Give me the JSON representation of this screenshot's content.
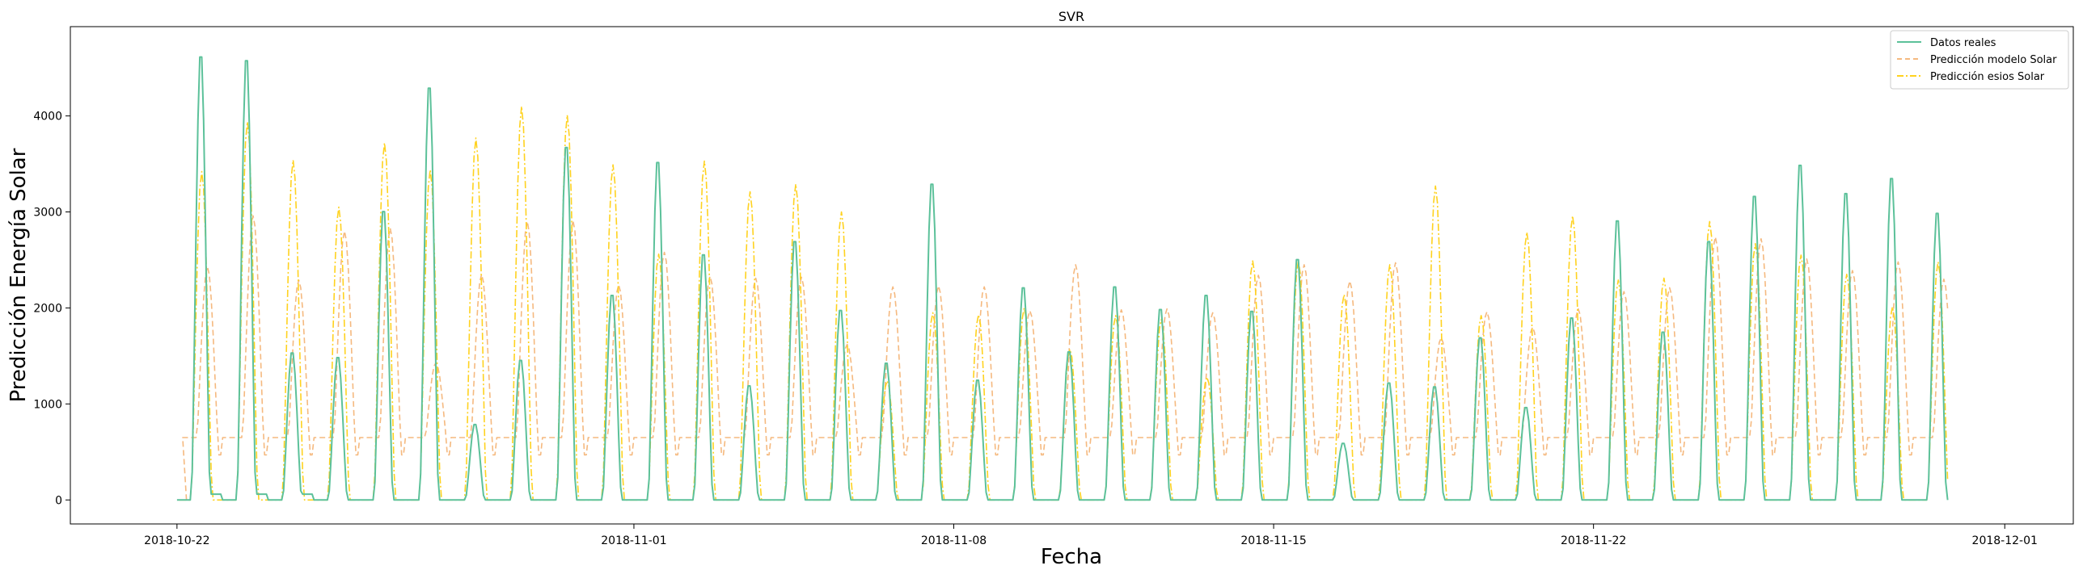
{
  "chart_data": {
    "type": "line",
    "title": "SVR",
    "xlabel": "Fecha",
    "ylabel": "Predicción Energía Solar",
    "x_range": [
      "2018-10-19T16:00",
      "2018-12-02T12:00"
    ],
    "ylim": [
      -250,
      4930
    ],
    "x_ticks": [
      "2018-10-22",
      "2018-11-01",
      "2018-11-08",
      "2018-11-15",
      "2018-11-22",
      "2018-12-01"
    ],
    "y_ticks": [
      0,
      1000,
      2000,
      3000,
      4000
    ],
    "grid": false,
    "legend_position": "top-right",
    "start_date": "2018-10-22",
    "num_days": 39,
    "series": [
      {
        "name": "Datos reales",
        "color": "#5cc19a",
        "style": "solid",
        "daily_peaks": [
          4700,
          4660,
          1560,
          1510,
          3060,
          4370,
          800,
          1480,
          3740,
          2170,
          3580,
          2600,
          1210,
          2740,
          2010,
          1450,
          3350,
          1270,
          2250,
          1570,
          2260,
          2020,
          2170,
          2000,
          2550,
          600,
          1240,
          1200,
          1720,
          980,
          1930,
          2960,
          1780,
          2740,
          3220,
          3550,
          3250,
          3410,
          3040
        ]
      },
      {
        "name": "Predicción modelo Solar",
        "color": "#f5b97f",
        "style": "dashed",
        "baseline": 650,
        "daily_peaks": [
          2430,
          2960,
          2290,
          2800,
          2830,
          1430,
          2350,
          2900,
          2910,
          2240,
          2580,
          2330,
          2310,
          2320,
          1620,
          2220,
          2230,
          2220,
          1970,
          2450,
          1980,
          1990,
          1950,
          2340,
          2450,
          2280,
          2470,
          1690,
          1960,
          1800,
          1990,
          2170,
          2210,
          2740,
          2720,
          2510,
          2390,
          2480,
          2300
        ]
      },
      {
        "name": "Predicción esios Solar",
        "color": "#ffd21f",
        "style": "dashdot",
        "daily_peaks": [
          3420,
          3940,
          3540,
          3050,
          3720,
          3440,
          3770,
          4100,
          4010,
          3490,
          2560,
          3530,
          3210,
          3290,
          3000,
          1240,
          1950,
          1930,
          2000,
          1570,
          1920,
          1880,
          1280,
          2490,
          2490,
          2140,
          2450,
          3270,
          1920,
          2790,
          2960,
          2290,
          2310,
          2900,
          2670,
          2550,
          2350,
          2010,
          2480
        ]
      }
    ]
  }
}
